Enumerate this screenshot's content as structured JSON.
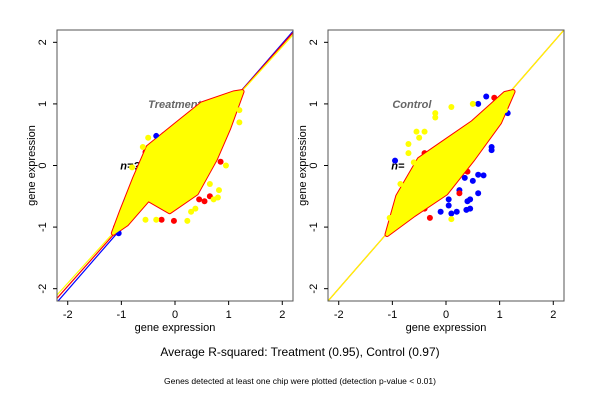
{
  "caption": "Average R-squared: Treatment (0.95), Control (0.97)",
  "footnote": "Genes detected at least one chip were plotted (detection p-value < 0.01)",
  "colors": {
    "blue": "#0000ff",
    "red": "#ff0000",
    "yellow": "#ffff00",
    "frame": "#555555",
    "panel_title": "#666666"
  },
  "chart_data": [
    {
      "type": "scatter",
      "title": "Treatment",
      "annotation": "n=?",
      "xlabel": "gene expression",
      "ylabel": "gene expression",
      "xlim": [
        -2.2,
        2.2
      ],
      "ylim": [
        -2.2,
        2.2
      ],
      "xticks": [
        "-2",
        "-1",
        "0",
        "1",
        "2"
      ],
      "yticks": [
        "-2",
        "-1",
        "0",
        "1",
        "2"
      ],
      "grid": false,
      "dense_core_region": [
        [
          -1.15,
          -1.1
        ],
        [
          -0.9,
          -0.95
        ],
        [
          -0.5,
          -0.55
        ],
        [
          -0.1,
          -0.75
        ],
        [
          0.4,
          -0.45
        ],
        [
          0.75,
          0.1
        ],
        [
          1.0,
          0.6
        ],
        [
          1.25,
          1.2
        ],
        [
          1.1,
          1.18
        ],
        [
          0.5,
          1.0
        ],
        [
          0.0,
          0.65
        ],
        [
          -0.5,
          0.3
        ],
        [
          -0.75,
          -0.2
        ],
        [
          -1.0,
          -0.75
        ]
      ],
      "series": [
        {
          "color": "blue",
          "points": [
            [
              -0.35,
              0.48
            ],
            [
              -0.25,
              0.44
            ],
            [
              -0.9,
              -0.58
            ],
            [
              -0.7,
              -0.18
            ],
            [
              -1.05,
              -1.1
            ]
          ]
        },
        {
          "color": "red",
          "points": [
            [
              -0.25,
              -0.88
            ],
            [
              -0.02,
              -0.9
            ],
            [
              0.55,
              -0.58
            ],
            [
              0.45,
              -0.55
            ],
            [
              0.65,
              -0.5
            ],
            [
              0.85,
              0.06
            ],
            [
              -0.55,
              0.22
            ],
            [
              -0.55,
              0.12
            ],
            [
              0.8,
              0.78
            ],
            [
              -0.2,
              0.5
            ],
            [
              -1.1,
              -1.0
            ]
          ]
        },
        {
          "color": "yellow",
          "points": [
            [
              -0.5,
              0.45
            ],
            [
              -0.35,
              -0.88
            ],
            [
              0.23,
              -0.9
            ],
            [
              0.9,
              0.5
            ],
            [
              0.82,
              0.48
            ],
            [
              0.95,
              0.0
            ],
            [
              0.82,
              -0.4
            ],
            [
              0.8,
              -0.52
            ],
            [
              0.72,
              -0.55
            ],
            [
              0.38,
              -0.7
            ],
            [
              -0.55,
              -0.88
            ],
            [
              -0.8,
              -0.03
            ],
            [
              1.2,
              0.7
            ],
            [
              1.2,
              0.9
            ],
            [
              0.65,
              -0.3
            ],
            [
              0.3,
              -0.75
            ],
            [
              -0.6,
              0.3
            ]
          ]
        }
      ],
      "fit_lines": [
        {
          "color": "blue",
          "slope": 1.0,
          "intercept": -0.02
        },
        {
          "color": "red",
          "slope": 0.98,
          "intercept": 0.0
        },
        {
          "color": "yellow",
          "slope": 0.96,
          "intercept": 0.01
        }
      ]
    },
    {
      "type": "scatter",
      "title": "Control",
      "annotation": "n=",
      "xlabel": "gene expression",
      "ylabel": "gene expression",
      "xlim": [
        -2.2,
        2.2
      ],
      "ylim": [
        -2.2,
        2.2
      ],
      "xticks": [
        "-2",
        "-1",
        "0",
        "1",
        "2"
      ],
      "yticks": [
        "-2",
        "-1",
        "0",
        "1",
        "2"
      ],
      "grid": false,
      "dense_core_region": [
        [
          -1.1,
          -1.12
        ],
        [
          -0.6,
          -0.8
        ],
        [
          0.0,
          -0.45
        ],
        [
          0.5,
          0.1
        ],
        [
          1.0,
          0.7
        ],
        [
          1.25,
          1.2
        ],
        [
          1.1,
          1.17
        ],
        [
          0.5,
          0.7
        ],
        [
          0.0,
          0.4
        ],
        [
          -0.5,
          0.1
        ],
        [
          -0.9,
          -0.5
        ]
      ],
      "series": [
        {
          "color": "blue",
          "points": [
            [
              0.75,
              1.12
            ],
            [
              0.6,
              1.0
            ],
            [
              0.85,
              0.3
            ],
            [
              0.85,
              0.25
            ],
            [
              0.7,
              -0.16
            ],
            [
              0.6,
              -0.45
            ],
            [
              0.45,
              -0.55
            ],
            [
              0.4,
              -0.58
            ],
            [
              0.45,
              -0.7
            ],
            [
              0.38,
              -0.72
            ],
            [
              0.2,
              -0.75
            ],
            [
              0.1,
              -0.78
            ],
            [
              -0.1,
              -0.75
            ],
            [
              0.05,
              -0.55
            ],
            [
              0.25,
              -0.4
            ],
            [
              0.5,
              -0.25
            ],
            [
              0.35,
              -0.2
            ],
            [
              -0.95,
              0.08
            ],
            [
              0.6,
              -0.15
            ],
            [
              1.15,
              0.85
            ],
            [
              0.05,
              -0.65
            ]
          ]
        },
        {
          "color": "red",
          "points": [
            [
              -0.8,
              -0.45
            ],
            [
              -0.4,
              -0.7
            ],
            [
              0.4,
              -0.1
            ],
            [
              0.5,
              0.2
            ],
            [
              0.7,
              0.5
            ],
            [
              -0.4,
              0.2
            ],
            [
              0.9,
              1.1
            ],
            [
              0.25,
              -0.45
            ],
            [
              -0.3,
              -0.85
            ]
          ]
        },
        {
          "color": "yellow",
          "points": [
            [
              -0.2,
              0.85
            ],
            [
              -0.2,
              0.78
            ],
            [
              -0.5,
              0.45
            ],
            [
              -0.55,
              0.55
            ],
            [
              -0.4,
              0.55
            ],
            [
              -0.7,
              0.35
            ],
            [
              -0.7,
              0.2
            ],
            [
              0.1,
              0.95
            ],
            [
              0.5,
              1.0
            ],
            [
              -0.85,
              -0.3
            ],
            [
              0.1,
              -0.87
            ],
            [
              -1.05,
              -0.85
            ],
            [
              -0.6,
              0.05
            ],
            [
              0.9,
              0.85
            ],
            [
              1.1,
              0.9
            ]
          ]
        }
      ],
      "fit_lines": [
        {
          "color": "red",
          "slope": 1.0,
          "intercept": 0.0
        },
        {
          "color": "yellow",
          "slope": 1.0,
          "intercept": 0.0
        }
      ]
    }
  ]
}
